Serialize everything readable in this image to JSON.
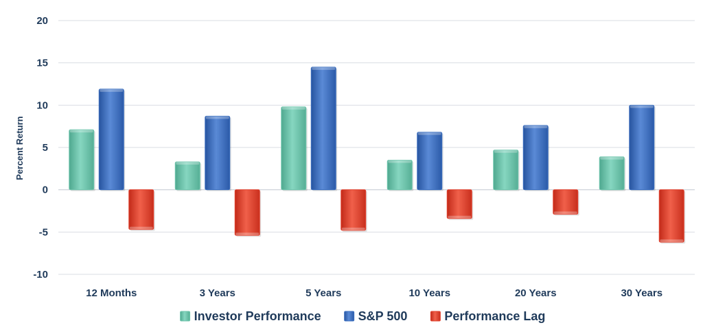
{
  "chart_data": {
    "type": "bar",
    "title": "",
    "xlabel": "",
    "ylabel": "Percent Return",
    "ylim": [
      -10,
      20
    ],
    "yticks": [
      20,
      15,
      10,
      5,
      0,
      -5,
      -10
    ],
    "grid": true,
    "legend_position": "bottom",
    "categories": [
      "12 Months",
      "3 Years",
      "5 Years",
      "10 Years",
      "20 Years",
      "30 Years"
    ],
    "series": [
      {
        "name": "Investor Performance",
        "color": "#6fc5ad",
        "values": [
          7.1,
          3.3,
          9.8,
          3.5,
          4.7,
          3.9
        ]
      },
      {
        "name": "S&P 500",
        "color": "#3b6fc0",
        "values": [
          11.9,
          8.7,
          14.5,
          6.8,
          7.6,
          10.0
        ]
      },
      {
        "name": "Performance Lag",
        "color": "#e2412e",
        "values": [
          -4.7,
          -5.4,
          -4.8,
          -3.4,
          -2.9,
          -6.2
        ]
      }
    ]
  }
}
